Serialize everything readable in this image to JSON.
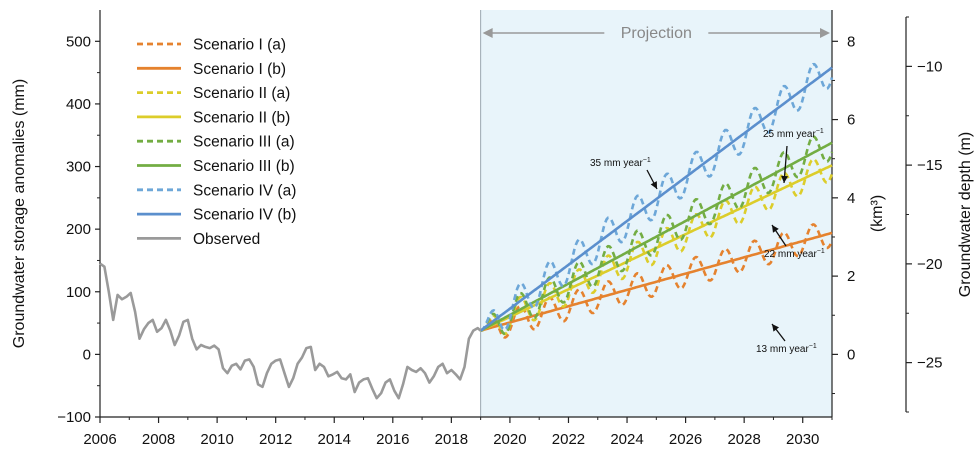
{
  "chart_data": {
    "type": "line",
    "x_range": [
      2006,
      2031
    ],
    "x_ticks": [
      2006,
      2008,
      2010,
      2012,
      2014,
      2016,
      2018,
      2020,
      2022,
      2024,
      2026,
      2028,
      2030
    ],
    "left_axis": {
      "label": "Groundwater storage anomalies (mm)",
      "range": [
        -100,
        550
      ],
      "ticks": [
        -100,
        0,
        100,
        200,
        300,
        400,
        500
      ]
    },
    "middle_axis": {
      "label": "(km³)",
      "range": [
        -1.6,
        8.8
      ],
      "ticks": [
        0,
        2,
        4,
        6,
        8
      ]
    },
    "right_axis": {
      "label": "Groundwater depth (m)",
      "range": [
        -27.5,
        -7.5
      ],
      "ticks": [
        -25,
        -20,
        -15,
        -10
      ]
    },
    "projection": {
      "label": "Projection",
      "start": 2019,
      "end": 2031,
      "shade_color": "#e8f4fa"
    },
    "series": [
      {
        "name": "Scenario I (a)",
        "color": "#e5822e",
        "style": "dashed",
        "start": 2019,
        "rate": 13,
        "amp": 22
      },
      {
        "name": "Scenario I (b)",
        "color": "#e5822e",
        "style": "solid",
        "start": 2019,
        "rate": 13
      },
      {
        "name": "Scenario II (a)",
        "color": "#dccd2a",
        "style": "dashed",
        "start": 2019,
        "rate": 22,
        "amp": 24
      },
      {
        "name": "Scenario II (b)",
        "color": "#dccd2a",
        "style": "solid",
        "start": 2019,
        "rate": 22
      },
      {
        "name": "Scenario III (a)",
        "color": "#73ad43",
        "style": "dashed",
        "start": 2019,
        "rate": 25,
        "amp": 26
      },
      {
        "name": "Scenario III (b)",
        "color": "#73ad43",
        "style": "solid",
        "start": 2019,
        "rate": 25
      },
      {
        "name": "Scenario IV (a)",
        "color": "#6da7d8",
        "style": "dashed",
        "start": 2019,
        "rate": 35,
        "amp": 28
      },
      {
        "name": "Scenario IV (b)",
        "color": "#5b8fcd",
        "style": "solid",
        "start": 2019,
        "rate": 35
      },
      {
        "name": "Observed",
        "color": "#9a9a9a",
        "style": "solid",
        "x": [
          2006.0,
          2006.15,
          2006.3,
          2006.45,
          2006.6,
          2006.75,
          2006.9,
          2007.05,
          2007.2,
          2007.35,
          2007.5,
          2007.65,
          2007.8,
          2007.95,
          2008.1,
          2008.25,
          2008.4,
          2008.55,
          2008.7,
          2008.85,
          2009.0,
          2009.15,
          2009.3,
          2009.45,
          2009.6,
          2009.75,
          2009.9,
          2010.05,
          2010.2,
          2010.35,
          2010.5,
          2010.65,
          2010.8,
          2010.95,
          2011.1,
          2011.25,
          2011.4,
          2011.55,
          2011.7,
          2011.85,
          2012.0,
          2012.15,
          2012.3,
          2012.45,
          2012.6,
          2012.75,
          2012.9,
          2013.05,
          2013.2,
          2013.35,
          2013.5,
          2013.65,
          2013.8,
          2013.95,
          2014.1,
          2014.25,
          2014.4,
          2014.55,
          2014.7,
          2014.85,
          2015.0,
          2015.15,
          2015.3,
          2015.45,
          2015.6,
          2015.75,
          2015.9,
          2016.05,
          2016.2,
          2016.35,
          2016.5,
          2016.65,
          2016.8,
          2016.95,
          2017.1,
          2017.25,
          2017.4,
          2017.55,
          2017.7,
          2017.85,
          2018.0,
          2018.15,
          2018.3,
          2018.45,
          2018.6,
          2018.75,
          2018.9,
          2019.0
        ],
        "y": [
          145,
          140,
          100,
          55,
          95,
          88,
          92,
          98,
          68,
          25,
          40,
          50,
          55,
          36,
          42,
          55,
          38,
          15,
          30,
          52,
          55,
          25,
          8,
          15,
          12,
          10,
          14,
          8,
          -22,
          -30,
          -18,
          -15,
          -24,
          -10,
          -8,
          -20,
          -48,
          -52,
          -30,
          -15,
          -10,
          -8,
          -30,
          -52,
          -38,
          -15,
          -5,
          10,
          12,
          -25,
          -15,
          -20,
          -35,
          -32,
          -28,
          -38,
          -40,
          -32,
          -60,
          -45,
          -40,
          -38,
          -55,
          -70,
          -62,
          -45,
          -40,
          -58,
          -70,
          -48,
          -20,
          -25,
          -28,
          -22,
          -30,
          -45,
          -35,
          -20,
          -15,
          -30,
          -25,
          -32,
          -40,
          -20,
          25,
          38,
          42,
          38
        ]
      }
    ],
    "annotations": [
      {
        "text": "35 mm year",
        "sup": "−1"
      },
      {
        "text": "25 mm year",
        "sup": "−1"
      },
      {
        "text": "22 mm year",
        "sup": "−1"
      },
      {
        "text": "13 mm year",
        "sup": "−1"
      }
    ],
    "legend_position": "top-left",
    "grid": false
  }
}
